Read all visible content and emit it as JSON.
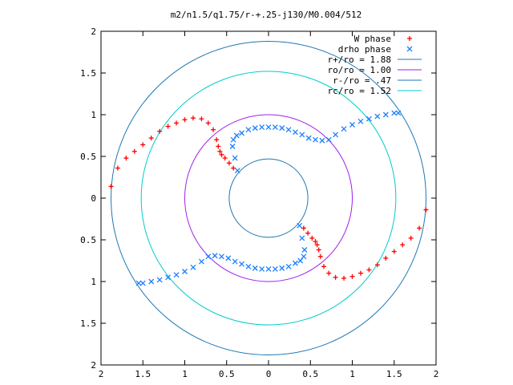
{
  "chart_data": {
    "type": "scatter",
    "title": "m2/n1.5/q1.75/r-+.25-j130/M0.004/512",
    "xlabel": "",
    "ylabel": "",
    "xlim": [
      -2,
      2
    ],
    "ylim": [
      -2,
      2
    ],
    "grid": false,
    "legend_position": "top-right",
    "x_tick_labels": [
      "2",
      "1.5",
      "1",
      "0.5",
      "0",
      "0.5",
      "1",
      "1.5",
      "2"
    ],
    "y_tick_labels": [
      "2",
      "1.5",
      "1",
      "0.5",
      "0",
      "0.5",
      "1",
      "1.5",
      "2"
    ],
    "circles": [
      {
        "name": "r+/ro = 1.88",
        "radius": 1.88,
        "color": "#1f77b4"
      },
      {
        "name": "ro/ro = 1.00",
        "radius": 1.0,
        "color": "#a020f0"
      },
      {
        "name": "r-/ro = .47",
        "radius": 0.47,
        "color": "#1f77b4"
      },
      {
        "name": "rc/ro = 1.52",
        "radius": 1.52,
        "color": "#00cccc"
      }
    ],
    "series": [
      {
        "name": "W phase",
        "marker": "+",
        "color": "#ff0000",
        "x": [
          -1.88,
          -1.8,
          -1.7,
          -1.6,
          -1.5,
          -1.4,
          -1.3,
          -1.2,
          -1.1,
          -1.0,
          -0.9,
          -0.8,
          -0.72,
          -0.66,
          -0.62,
          -0.6,
          -0.58,
          -0.56,
          -0.52,
          -0.47,
          -0.42,
          1.88,
          1.8,
          1.7,
          1.6,
          1.5,
          1.4,
          1.3,
          1.2,
          1.1,
          1.0,
          0.9,
          0.8,
          0.72,
          0.66,
          0.62,
          0.6,
          0.58,
          0.56,
          0.52,
          0.47,
          0.42
        ],
        "y": [
          0.14,
          0.36,
          0.48,
          0.56,
          0.64,
          0.72,
          0.8,
          0.86,
          0.9,
          0.94,
          0.96,
          0.95,
          0.9,
          0.82,
          0.7,
          0.62,
          0.56,
          0.52,
          0.48,
          0.42,
          0.36,
          -0.14,
          -0.36,
          -0.48,
          -0.56,
          -0.64,
          -0.72,
          -0.8,
          -0.86,
          -0.9,
          -0.94,
          -0.96,
          -0.95,
          -0.9,
          -0.82,
          -0.7,
          -0.62,
          -0.56,
          -0.52,
          -0.48,
          -0.42,
          -0.36
        ]
      },
      {
        "name": "drho phase",
        "marker": "x",
        "color": "#1e7fff",
        "x": [
          -0.37,
          -0.4,
          -0.43,
          -0.42,
          -0.38,
          -0.32,
          -0.24,
          -0.16,
          -0.08,
          0.0,
          0.08,
          0.16,
          0.24,
          0.32,
          0.4,
          0.48,
          0.56,
          0.64,
          0.72,
          0.8,
          0.9,
          1.0,
          1.1,
          1.2,
          1.3,
          1.4,
          1.5,
          1.55,
          0.37,
          0.4,
          0.43,
          0.42,
          0.38,
          0.32,
          0.24,
          0.16,
          0.08,
          0.0,
          -0.08,
          -0.16,
          -0.24,
          -0.32,
          -0.4,
          -0.48,
          -0.56,
          -0.64,
          -0.72,
          -0.8,
          -0.9,
          -1.0,
          -1.1,
          -1.2,
          -1.3,
          -1.4,
          -1.5,
          -1.55
        ],
        "y": [
          0.33,
          0.48,
          0.62,
          0.7,
          0.75,
          0.78,
          0.82,
          0.84,
          0.85,
          0.85,
          0.85,
          0.84,
          0.82,
          0.79,
          0.76,
          0.72,
          0.7,
          0.69,
          0.7,
          0.76,
          0.83,
          0.88,
          0.92,
          0.95,
          0.98,
          1.0,
          1.02,
          1.02,
          -0.33,
          -0.48,
          -0.62,
          -0.7,
          -0.75,
          -0.78,
          -0.82,
          -0.84,
          -0.85,
          -0.85,
          -0.85,
          -0.84,
          -0.82,
          -0.79,
          -0.76,
          -0.72,
          -0.7,
          -0.69,
          -0.7,
          -0.76,
          -0.83,
          -0.88,
          -0.92,
          -0.95,
          -0.98,
          -1.0,
          -1.02,
          -1.02
        ]
      }
    ]
  }
}
